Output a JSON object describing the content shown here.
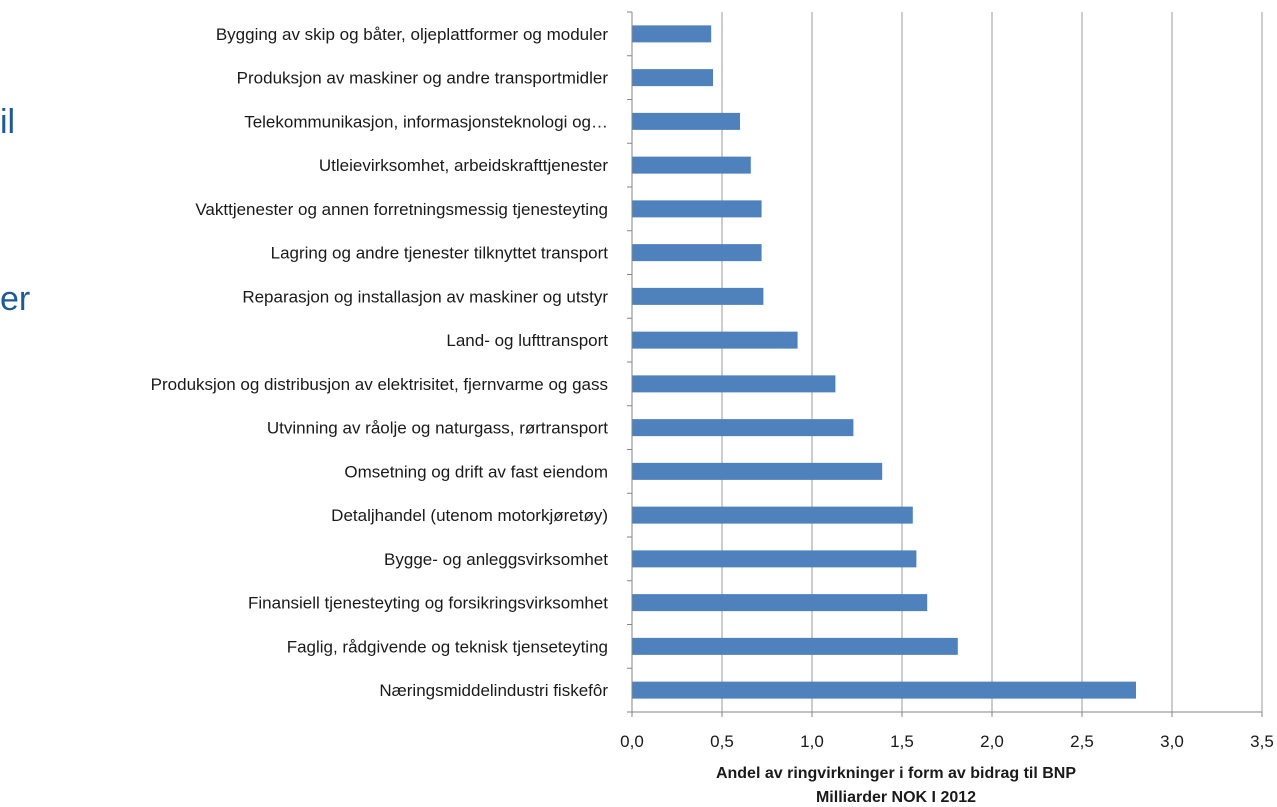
{
  "background_text": {
    "fragment_1": "il",
    "fragment_2": "er"
  },
  "chart_data": {
    "type": "bar",
    "orientation": "horizontal",
    "categories": [
      "Bygging av skip og båter, oljeplattformer og moduler",
      "Produksjon av maskiner og andre transportmidler",
      "Telekommunikasjon, informasjonsteknologi og…",
      "Utleievirksomhet, arbeidskrafttjenester",
      "Vakttjenester og annen forretningsmessig tjenesteyting",
      "Lagring og andre tjenester tilknyttet transport",
      "Reparasjon og installasjon av maskiner og utstyr",
      "Land- og lufttransport",
      "Produksjon og distribusjon av elektrisitet, fjernvarme og gass",
      "Utvinning av råolje og naturgass, rørtransport",
      "Omsetning og drift av fast eiendom",
      "Detaljhandel (utenom motorkjøretøy)",
      "Bygge- og anleggsvirksomhet",
      "Finansiell tjenesteyting og forsikringsvirksomhet",
      "Faglig, rådgivende og teknisk tjenseteyting",
      "Næringsmiddelindustri fiskefôr"
    ],
    "values": [
      0.44,
      0.45,
      0.6,
      0.66,
      0.72,
      0.72,
      0.73,
      0.92,
      1.13,
      1.23,
      1.39,
      1.56,
      1.58,
      1.64,
      1.81,
      2.8
    ],
    "xlim": [
      0,
      3.5
    ],
    "xticks": [
      "0,0",
      "0,5",
      "1,0",
      "1,5",
      "2,0",
      "2,5",
      "3,0",
      "3,5"
    ],
    "xlabel": "Andel av ringvirkninger i form av bidrag til BNP",
    "xlabel_line2": "Milliarder NOK I 2012",
    "grid": true,
    "bar_color": "#4f81bd",
    "grid_color": "#9a9a9a"
  }
}
